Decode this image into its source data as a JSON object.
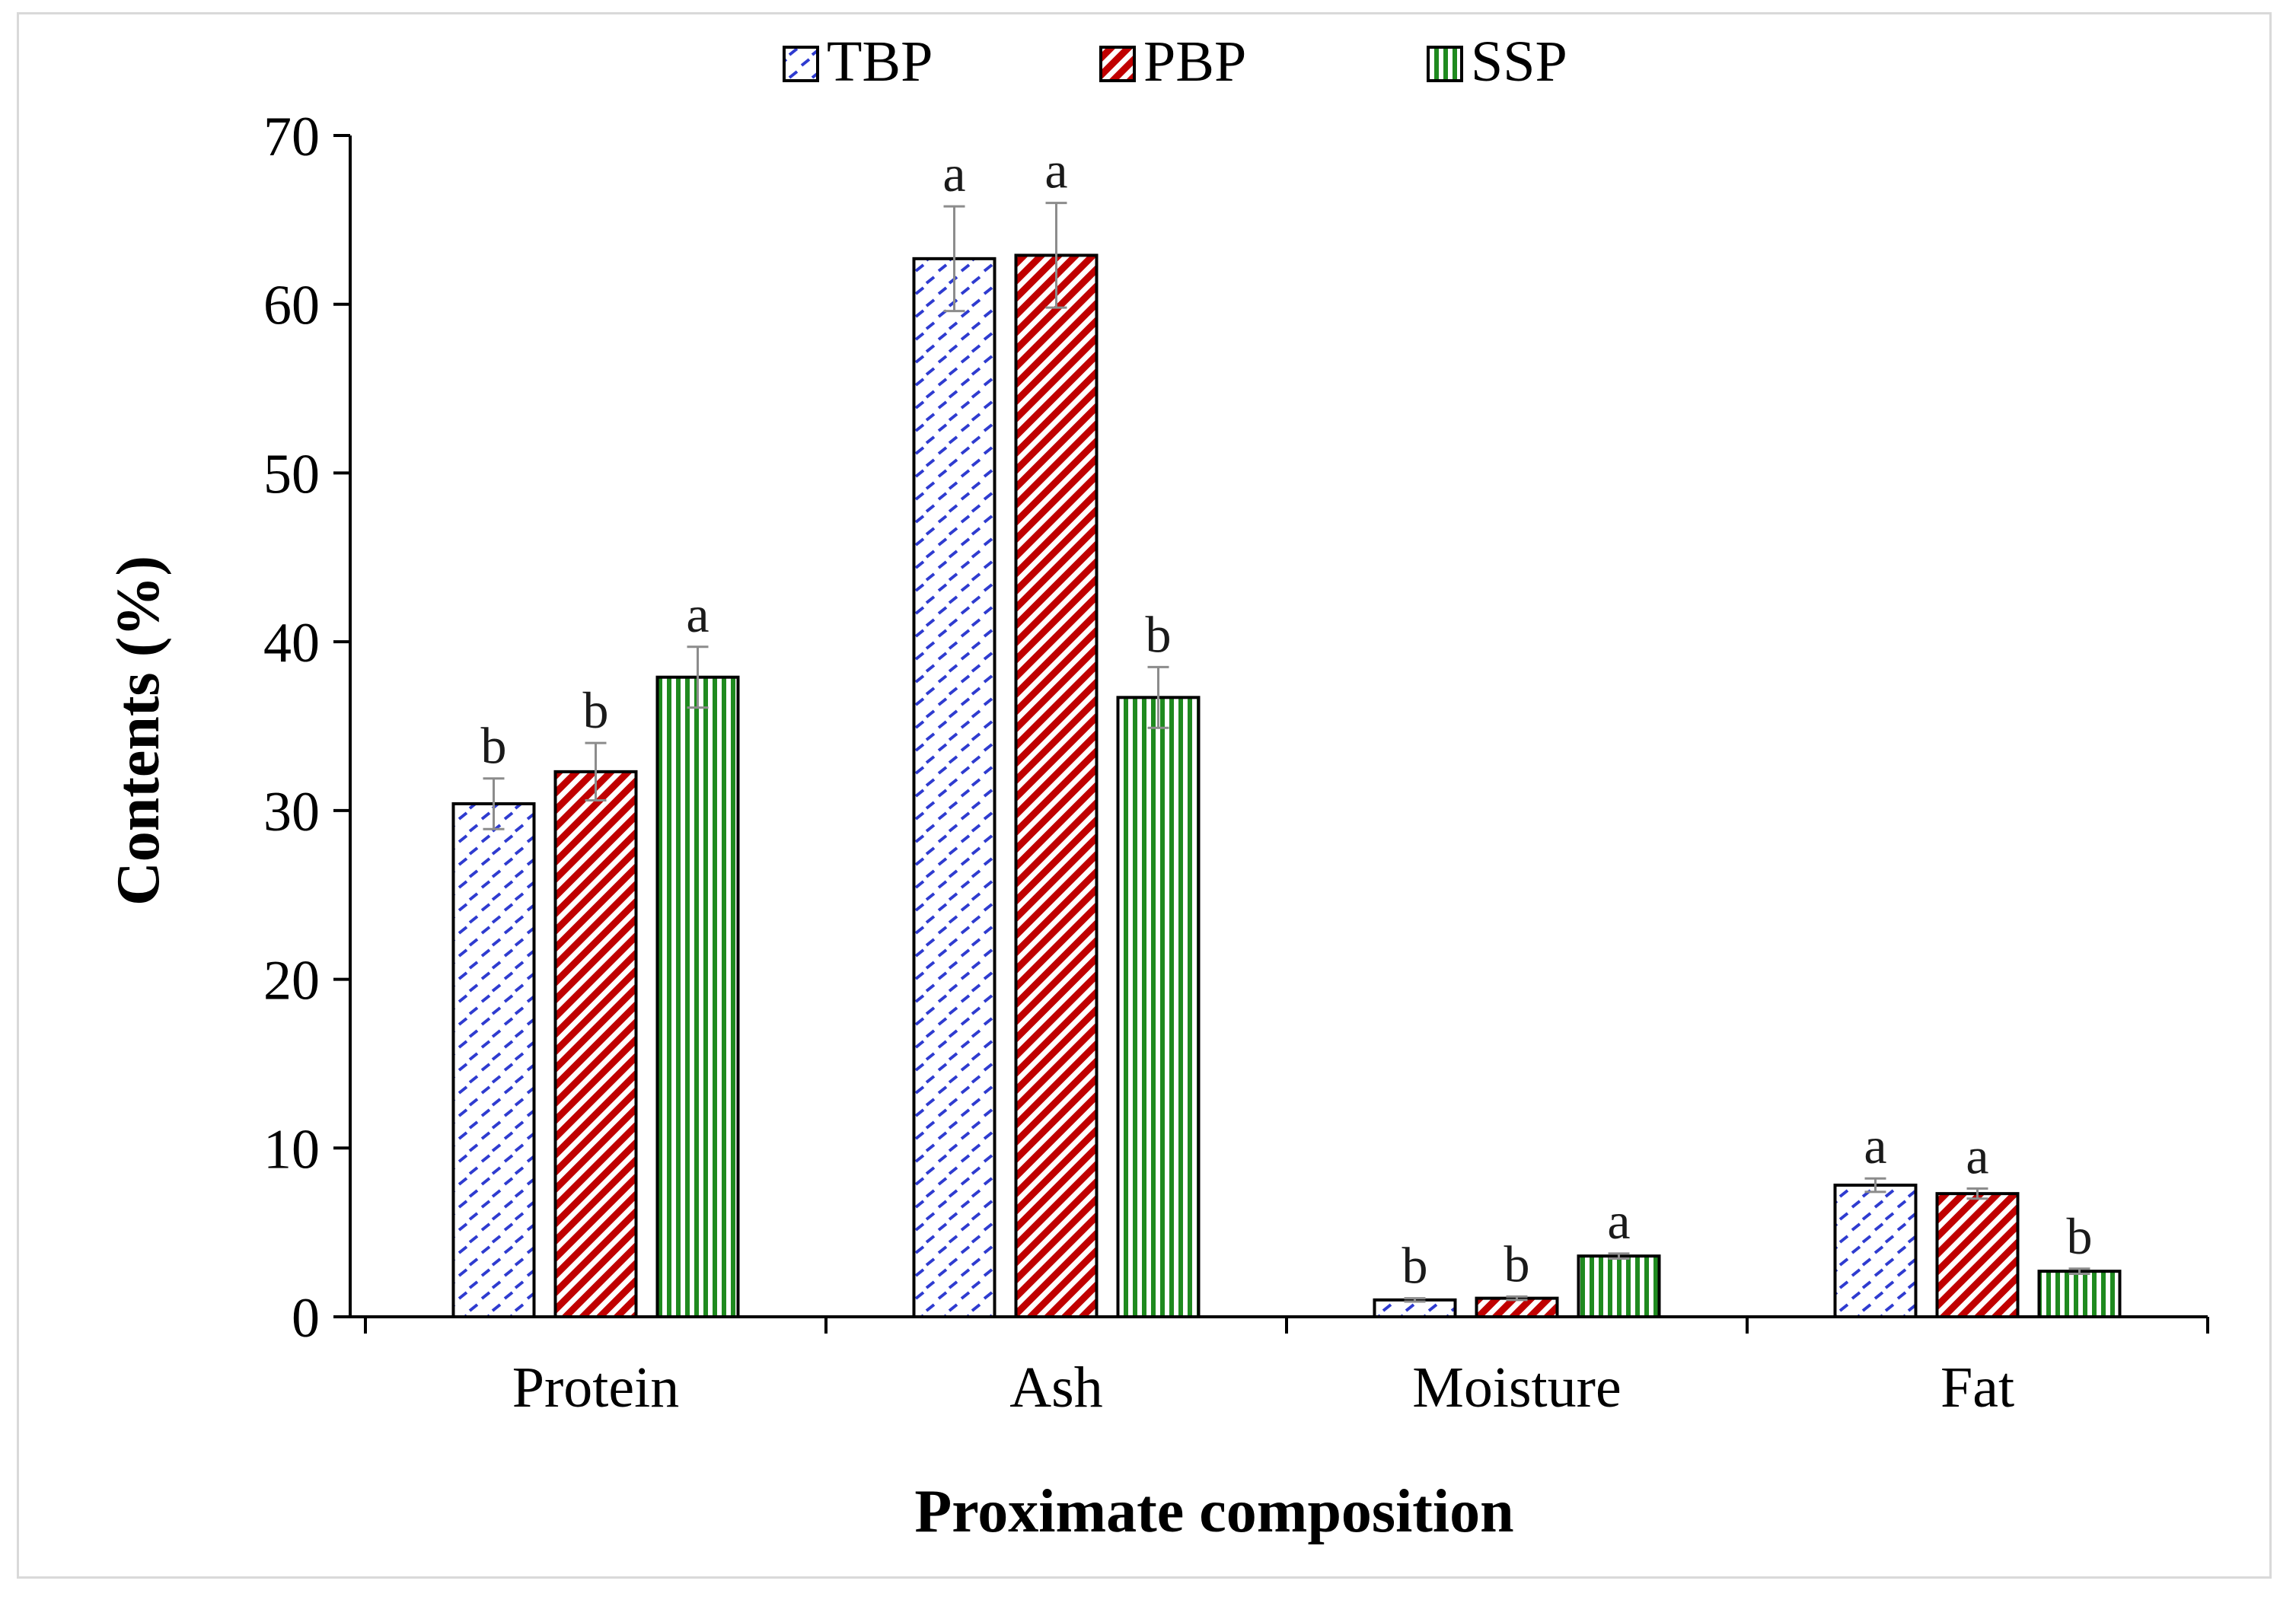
{
  "chart_data": {
    "type": "bar",
    "title": "",
    "xlabel": "Proximate composition",
    "ylabel": "Contents (%)",
    "ylim": [
      0,
      70
    ],
    "yticks": [
      0,
      10,
      20,
      30,
      40,
      50,
      60,
      70
    ],
    "categories": [
      "Protein",
      "Ash",
      "Moisture",
      "Fat"
    ],
    "legend_position": "top-center",
    "grid": false,
    "series": [
      {
        "name": "TBP",
        "color": "#2e3bd0",
        "pattern": "dashed-diagonal",
        "values": [
          30.4,
          62.7,
          1.0,
          7.8
        ],
        "errors": [
          1.5,
          3.1,
          0.1,
          0.4
        ],
        "significance": [
          "b",
          "a",
          "b",
          "a"
        ]
      },
      {
        "name": "PBP",
        "color": "#c00000",
        "pattern": "diagonal-stripes",
        "values": [
          32.3,
          62.9,
          1.1,
          7.3
        ],
        "errors": [
          1.7,
          3.1,
          0.1,
          0.3
        ],
        "significance": [
          "b",
          "a",
          "b",
          "a"
        ]
      },
      {
        "name": "SSP",
        "color": "#1f8a1f",
        "pattern": "vertical-stripes",
        "values": [
          37.9,
          36.7,
          3.6,
          2.7
        ],
        "errors": [
          1.8,
          1.8,
          0.15,
          0.15
        ],
        "significance": [
          "a",
          "b",
          "a",
          "b"
        ]
      }
    ]
  }
}
